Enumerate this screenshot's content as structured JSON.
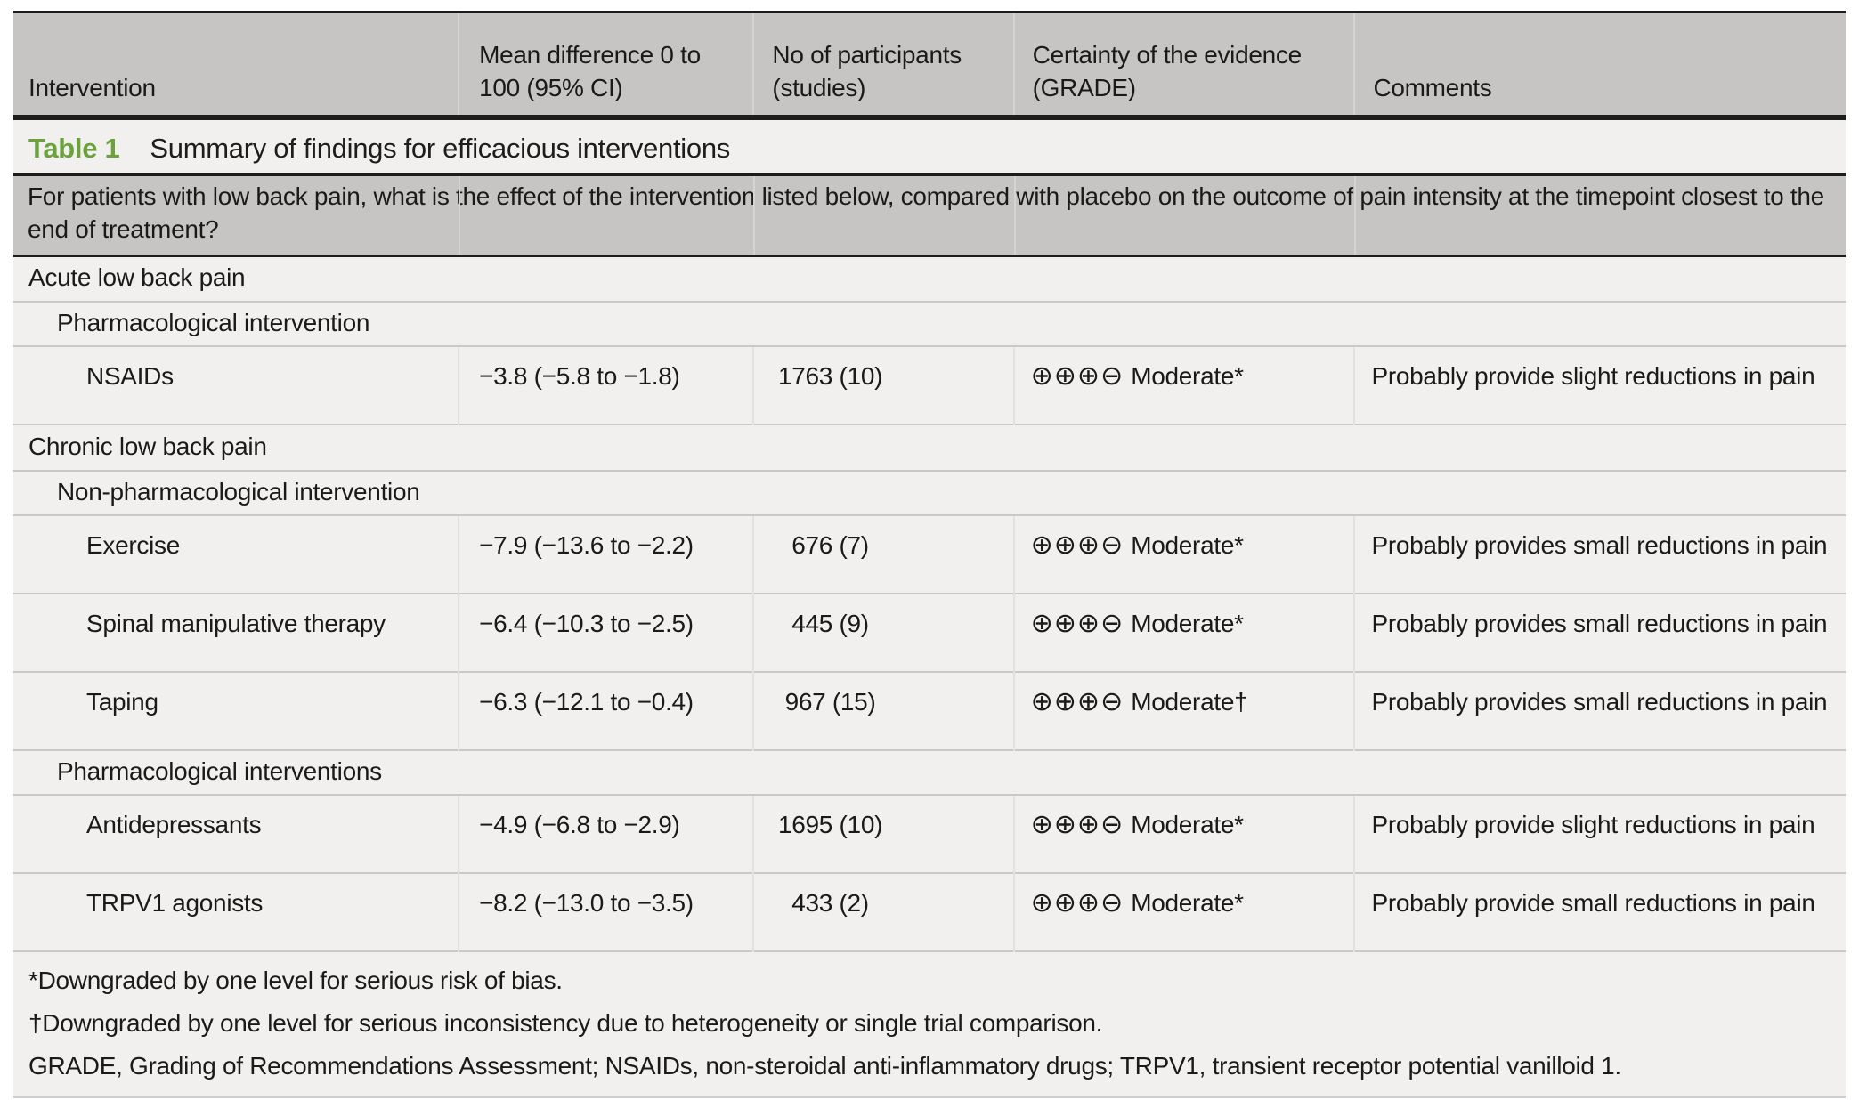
{
  "table": {
    "label": "Table 1",
    "title": "Summary of findings for efficacious interventions",
    "question": "For patients with low back pain, what is the effect of the intervention listed below, compared with placebo on the outcome of pain intensity at the timepoint closest to the end of treatment?",
    "columns": [
      "Intervention",
      "Mean difference 0 to 100 (95% CI)",
      "No of participants (studies)",
      "Certainty of the evidence (GRADE)",
      "Comments"
    ],
    "rows": [
      {
        "type": "section",
        "label": "Acute low back pain"
      },
      {
        "type": "subsection",
        "label": "Pharmacological intervention"
      },
      {
        "type": "data",
        "intervention": "NSAIDs",
        "mean_difference": "−3.8 (−5.8 to −1.8)",
        "participants": "1763 (10)",
        "certainty_symbols": "⊕⊕⊕⊖",
        "certainty_label": "Moderate*",
        "comments": "Probably provide slight reductions in pain"
      },
      {
        "type": "section",
        "label": "Chronic low back pain"
      },
      {
        "type": "subsection",
        "label": "Non-pharmacological intervention"
      },
      {
        "type": "data",
        "intervention": "Exercise",
        "mean_difference": "−7.9 (−13.6 to −2.2)",
        "participants": "676 (7)",
        "certainty_symbols": "⊕⊕⊕⊖",
        "certainty_label": "Moderate*",
        "comments": "Probably provides small reductions in pain"
      },
      {
        "type": "data",
        "intervention": "Spinal manipulative therapy",
        "mean_difference": "−6.4 (−10.3 to −2.5)",
        "participants": "445 (9)",
        "certainty_symbols": "⊕⊕⊕⊖",
        "certainty_label": "Moderate*",
        "comments": "Probably provides small reductions in pain"
      },
      {
        "type": "data",
        "intervention": "Taping",
        "mean_difference": "−6.3 (−12.1 to −0.4)",
        "participants": "967 (15)",
        "certainty_symbols": "⊕⊕⊕⊖",
        "certainty_label": "Moderate†",
        "comments": "Probably provides small reductions in pain"
      },
      {
        "type": "subsection",
        "label": "Pharmacological interventions"
      },
      {
        "type": "data",
        "intervention": "Antidepressants",
        "mean_difference": "−4.9 (−6.8 to −2.9)",
        "participants": "1695 (10)",
        "certainty_symbols": "⊕⊕⊕⊖",
        "certainty_label": "Moderate*",
        "comments": "Probably provide slight reductions in pain"
      },
      {
        "type": "data",
        "intervention": "TRPV1 agonists",
        "mean_difference": "−8.2 (−13.0 to −3.5)",
        "participants": "433 (2)",
        "certainty_symbols": "⊕⊕⊕⊖",
        "certainty_label": "Moderate*",
        "comments": "Probably provide small reductions in pain"
      }
    ],
    "footnotes": [
      "*Downgraded by one level for serious risk of bias.",
      "†Downgraded by one level for serious inconsistency due to heterogeneity or single trial comparison.",
      "GRADE, Grading of Recommendations Assessment; NSAIDs, non-steroidal anti-inflammatory drugs; TRPV1, transient receptor potential vanilloid 1."
    ]
  },
  "colors": {
    "accent_green": "#6ba23c",
    "band_gray": "#c6c5c3",
    "row_background": "#f1f0ee",
    "rule_black": "#1d1d1b",
    "rule_gray": "#c9c8c6",
    "text": "#1a1a18"
  }
}
